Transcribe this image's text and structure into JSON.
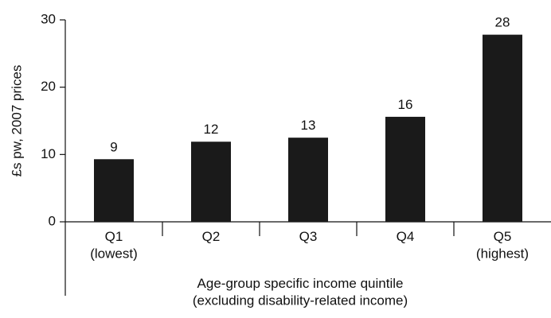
{
  "chart_data": {
    "type": "bar",
    "y_label": "£s pw, 2007 prices",
    "x_label": "Age-group specific income quintile\n(excluding disability-related income)",
    "categories": [
      "Q1\n(lowest)",
      "Q2",
      "Q3",
      "Q4",
      "Q5\n(highest)"
    ],
    "values": [
      9.3,
      11.9,
      12.5,
      15.6,
      27.8
    ],
    "value_labels": [
      "9",
      "12",
      "13",
      "16",
      "28"
    ],
    "color": "#1a1a1a",
    "ylim": [
      0,
      30
    ],
    "yticks": [
      0,
      10,
      20,
      30
    ]
  }
}
